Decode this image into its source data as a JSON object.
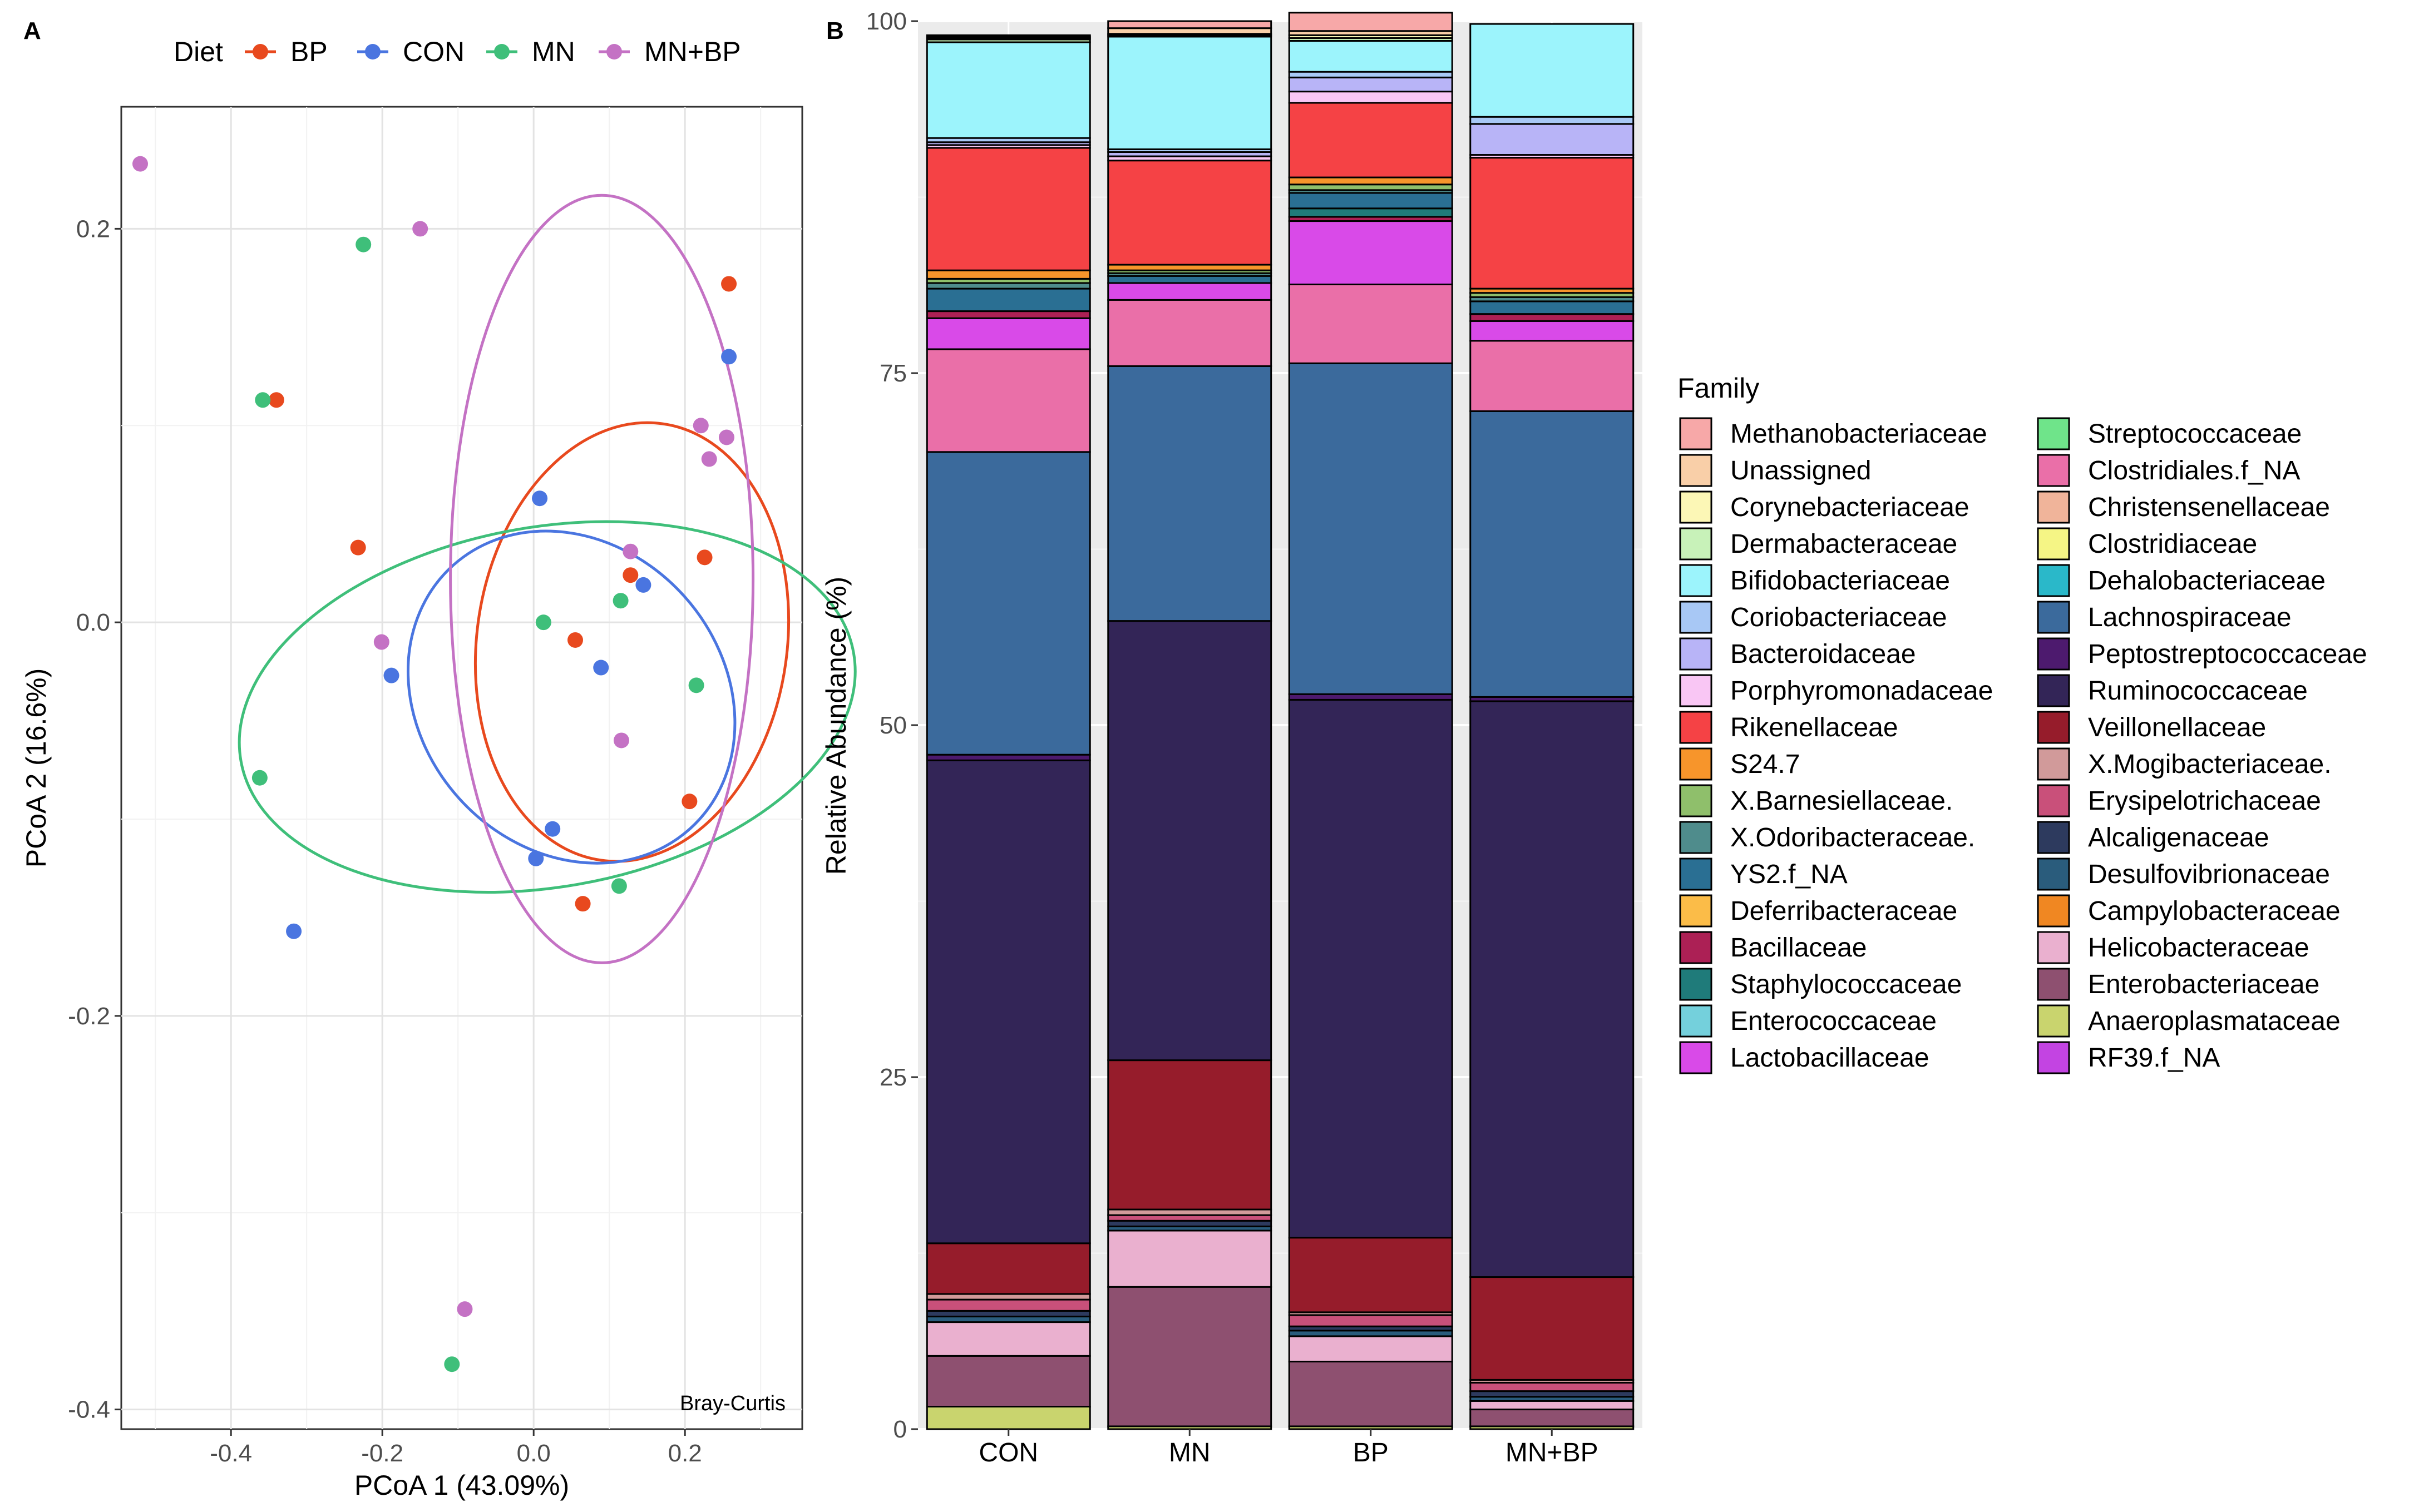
{
  "chart_data": [
    {
      "panel": "A",
      "type": "scatter",
      "xlabel": "PCoA 1 (43.09%)",
      "ylabel": "PCoA 2 (16.6%)",
      "xlim": [
        -0.545,
        0.355
      ],
      "ylim": [
        -0.41,
        0.262
      ],
      "xticks": [
        -0.4,
        -0.2,
        0.0,
        0.2
      ],
      "xtick_labels": [
        "-0.4",
        "-0.2",
        "0.0",
        "0.2"
      ],
      "yticks": [
        -0.4,
        -0.2,
        0.0,
        0.2
      ],
      "ytick_labels": [
        "-0.4",
        "-0.2",
        "0.0",
        "0.2"
      ],
      "annotation": "Bray-Curtis",
      "legend": {
        "title": "Diet",
        "position": "top"
      },
      "series": [
        {
          "name": "BP",
          "color": "#E8491E",
          "points": [
            [
              -0.34,
              0.113
            ],
            [
              -0.232,
              0.038
            ],
            [
              0.128,
              0.024
            ],
            [
              0.226,
              0.033
            ],
            [
              0.258,
              0.172
            ],
            [
              0.055,
              -0.009
            ],
            [
              0.206,
              -0.091
            ],
            [
              0.065,
              -0.143
            ]
          ],
          "ellipse": {
            "cx": 0.13,
            "cy": -0.01,
            "rx": 0.205,
            "ry": 0.112,
            "angle": -8
          }
        },
        {
          "name": "CON",
          "color": "#4A75E0",
          "points": [
            [
              0.008,
              0.063
            ],
            [
              0.145,
              0.019
            ],
            [
              0.089,
              -0.023
            ],
            [
              -0.188,
              -0.027
            ],
            [
              0.258,
              0.135
            ],
            [
              0.025,
              -0.105
            ],
            [
              0.003,
              -0.12
            ],
            [
              -0.317,
              -0.157
            ]
          ],
          "ellipse": {
            "cx": 0.05,
            "cy": -0.038,
            "rx": 0.2,
            "ry": 0.09,
            "angle": 42
          }
        },
        {
          "name": "MN",
          "color": "#3FBF7A",
          "points": [
            [
              -0.225,
              0.192
            ],
            [
              -0.358,
              0.113
            ],
            [
              0.013,
              0.0
            ],
            [
              0.115,
              0.011
            ],
            [
              0.215,
              -0.032
            ],
            [
              -0.362,
              -0.079
            ],
            [
              0.113,
              -0.134
            ],
            [
              -0.108,
              -0.377
            ]
          ],
          "ellipse": {
            "cx": 0.018,
            "cy": -0.043,
            "rx": 0.238,
            "ry": 0.158,
            "angle": -80
          }
        },
        {
          "name": "MN+BP",
          "color": "#C472C4",
          "points": [
            [
              -0.52,
              0.233
            ],
            [
              -0.15,
              0.2
            ],
            [
              0.221,
              0.1
            ],
            [
              0.232,
              0.083
            ],
            [
              0.255,
              0.094
            ],
            [
              0.128,
              0.036
            ],
            [
              -0.201,
              -0.01
            ],
            [
              0.116,
              -0.06
            ],
            [
              -0.091,
              -0.349
            ]
          ],
          "ellipse": {
            "cx": 0.09,
            "cy": 0.022,
            "rx": 0.2,
            "ry": 0.195,
            "angle": 0
          }
        }
      ]
    },
    {
      "panel": "B",
      "type": "bar",
      "stacked": true,
      "ylabel": "Relative Abundance (%)",
      "ylim": [
        0,
        100
      ],
      "yticks": [
        0,
        25,
        50,
        75,
        100
      ],
      "categories": [
        "CON",
        "MN",
        "BP",
        "MN+BP"
      ],
      "legend": {
        "title": "Family",
        "position": "right"
      },
      "families": [
        {
          "name": "Methanobacteriaceae",
          "color": "#F7A8A8"
        },
        {
          "name": "Unassigned",
          "color": "#F9CFA8"
        },
        {
          "name": "Corynebacteriaceae",
          "color": "#FCF7B6"
        },
        {
          "name": "Dermabacteraceae",
          "color": "#C8F2B9"
        },
        {
          "name": "Bifidobacteriaceae",
          "color": "#9CF4FC"
        },
        {
          "name": "Coriobacteriaceae",
          "color": "#A8C8F5"
        },
        {
          "name": "Bacteroidaceae",
          "color": "#B8B4F7"
        },
        {
          "name": "Porphyromonadaceae",
          "color": "#F9C6F4"
        },
        {
          "name": "Rikenellaceae",
          "color": "#F54245"
        },
        {
          "name": "S24.7",
          "color": "#F7952B"
        },
        {
          "name": "X.Barnesiellaceae.",
          "color": "#8FBF6B"
        },
        {
          "name": "X.Odoribacteraceae.",
          "color": "#4F8C8C"
        },
        {
          "name": "YS2.f_NA",
          "color": "#2A6F93"
        },
        {
          "name": "Deferribacteraceae",
          "color": "#FBBC48"
        },
        {
          "name": "Bacillaceae",
          "color": "#AC2055"
        },
        {
          "name": "Staphylococcaceae",
          "color": "#1F7B7A"
        },
        {
          "name": "Enterococcaceae",
          "color": "#74D0DC"
        },
        {
          "name": "Lactobacillaceae",
          "color": "#D94AE8"
        },
        {
          "name": "Streptococcaceae",
          "color": "#6FE48A"
        },
        {
          "name": "Clostridiales.f_NA",
          "color": "#EA6FA8"
        },
        {
          "name": "Christensenellaceae",
          "color": "#F0B49A"
        },
        {
          "name": "Clostridiaceae",
          "color": "#F5F585"
        },
        {
          "name": "Dehalobacteriaceae",
          "color": "#2AB8C9"
        },
        {
          "name": "Lachnospiraceae",
          "color": "#3B6A9C"
        },
        {
          "name": "Peptostreptococcaceae",
          "color": "#4D1A6E"
        },
        {
          "name": "Ruminococcaceae",
          "color": "#332557"
        },
        {
          "name": "Veillonellaceae",
          "color": "#961C2B"
        },
        {
          "name": "X.Mogibacteriaceae.",
          "color": "#D19A9A"
        },
        {
          "name": "Erysipelotrichaceae",
          "color": "#C9507A"
        },
        {
          "name": "Alcaligenaceae",
          "color": "#2D3A5E"
        },
        {
          "name": "Desulfovibrionaceae",
          "color": "#2A5C7C"
        },
        {
          "name": "Campylobacteraceae",
          "color": "#F08722"
        },
        {
          "name": "Helicobacteraceae",
          "color": "#EAB0CF"
        },
        {
          "name": "Enterobacteriaceae",
          "color": "#8E5070"
        },
        {
          "name": "Anaeroplasmataceae",
          "color": "#C9D46E"
        },
        {
          "name": "RF39.f_NA",
          "color": "#C344E2"
        }
      ],
      "stack_order": [
        "Anaeroplasmataceae",
        "Enterobacteriaceae",
        "Helicobacteraceae",
        "Desulfovibrionaceae",
        "Alcaligenaceae",
        "Erysipelotrichaceae",
        "X.Mogibacteriaceae.",
        "Veillonellaceae",
        "Ruminococcaceae",
        "Peptostreptococcaceae",
        "Lachnospiraceae",
        "Clostridiales.f_NA",
        "Lactobacillaceae",
        "RF39.f_NA",
        "Bacillaceae",
        "Staphylococcaceae",
        "YS2.f_NA",
        "X.Odoribacteraceae.",
        "X.Barnesiellaceae.",
        "S24.7",
        "Rikenellaceae",
        "Porphyromonadaceae",
        "Bacteroidaceae",
        "Coriobacteriaceae",
        "Bifidobacteriaceae",
        "Dermabacteraceae",
        "Corynebacteriaceae",
        "Unassigned",
        "Methanobacteriaceae"
      ],
      "series": [
        {
          "name": "CON",
          "values": {
            "Anaeroplasmataceae": 1.6,
            "Enterobacteriaceae": 3.6,
            "Helicobacteraceae": 2.4,
            "Desulfovibrionaceae": 0.4,
            "Alcaligenaceae": 0.4,
            "Erysipelotrichaceae": 0.8,
            "X.Mogibacteriaceae.": 0.4,
            "Veillonellaceae": 3.6,
            "Ruminococcaceae": 34.3,
            "Peptostreptococcaceae": 0.4,
            "Lachnospiraceae": 21.5,
            "Clostridiales.f_NA": 7.3,
            "Lactobacillaceae": 2.2,
            "RF39.f_NA": 0,
            "Bacillaceae": 0.5,
            "Staphylococcaceae": 0,
            "YS2.f_NA": 1.6,
            "X.Odoribacteraceae.": 0.4,
            "X.Barnesiellaceae.": 0.3,
            "S24.7": 0.6,
            "Rikenellaceae": 8.7,
            "Porphyromonadaceae": 0.2,
            "Bacteroidaceae": 0.2,
            "Coriobacteriaceae": 0.3,
            "Bifidobacteriaceae": 6.8,
            "Dermabacteraceae": 0.2,
            "Corynebacteriaceae": 0.1,
            "Unassigned": 0.1,
            "Methanobacteriaceae": 0.1
          }
        },
        {
          "name": "MN",
          "values": {
            "Anaeroplasmataceae": 0.2,
            "Enterobacteriaceae": 9.9,
            "Helicobacteraceae": 4.0,
            "Desulfovibrionaceae": 0.3,
            "Alcaligenaceae": 0.4,
            "Erysipelotrichaceae": 0.4,
            "X.Mogibacteriaceae.": 0.4,
            "Veillonellaceae": 10.6,
            "Ruminococcaceae": 31.2,
            "Peptostreptococcaceae": 0,
            "Lachnospiraceae": 18.1,
            "Clostridiales.f_NA": 4.7,
            "Lactobacillaceae": 1.2,
            "RF39.f_NA": 0,
            "Bacillaceae": 0,
            "Staphylococcaceae": 0,
            "YS2.f_NA": 0.5,
            "X.Odoribacteraceae.": 0.2,
            "X.Barnesiellaceae.": 0.2,
            "S24.7": 0.4,
            "Rikenellaceae": 7.4,
            "Porphyromonadaceae": 0.3,
            "Bacteroidaceae": 0.3,
            "Coriobacteriaceae": 0.2,
            "Bifidobacteriaceae": 8.0,
            "Dermabacteraceae": 0.1,
            "Corynebacteriaceae": 0.1,
            "Unassigned": 0.4,
            "Methanobacteriaceae": 0.5
          }
        },
        {
          "name": "BP",
          "values": {
            "Anaeroplasmataceae": 0.2,
            "Enterobacteriaceae": 4.6,
            "Helicobacteraceae": 1.8,
            "Desulfovibrionaceae": 0.4,
            "Alcaligenaceae": 0.3,
            "Erysipelotrichaceae": 0.8,
            "X.Mogibacteriaceae.": 0.2,
            "Veillonellaceae": 5.3,
            "Ruminococcaceae": 38.2,
            "Peptostreptococcaceae": 0.4,
            "Lachnospiraceae": 23.5,
            "Clostridiales.f_NA": 5.6,
            "Lactobacillaceae": 4.5,
            "RF39.f_NA": 0,
            "Bacillaceae": 0.3,
            "Staphylococcaceae": 0.6,
            "YS2.f_NA": 1.1,
            "X.Odoribacteraceae.": 0.2,
            "X.Barnesiellaceae.": 0.4,
            "S24.7": 0.5,
            "Rikenellaceae": 5.3,
            "Porphyromonadaceae": 0.8,
            "Bacteroidaceae": 1.0,
            "Coriobacteriaceae": 0.4,
            "Bifidobacteriaceae": 2.2,
            "Dermabacteraceae": 0.2,
            "Corynebacteriaceae": 0.2,
            "Unassigned": 0.3,
            "Methanobacteriaceae": 1.3
          }
        },
        {
          "name": "MN+BP",
          "values": {
            "Anaeroplasmataceae": 0.2,
            "Enterobacteriaceae": 1.2,
            "Helicobacteraceae": 0.6,
            "Desulfovibrionaceae": 0.3,
            "Alcaligenaceae": 0.4,
            "Erysipelotrichaceae": 0.6,
            "X.Mogibacteriaceae.": 0.2,
            "Veillonellaceae": 7.3,
            "Ruminococcaceae": 40.9,
            "Peptostreptococcaceae": 0.3,
            "Lachnospiraceae": 20.3,
            "Clostridiales.f_NA": 5.0,
            "Lactobacillaceae": 1.4,
            "RF39.f_NA": 0,
            "Bacillaceae": 0.5,
            "Staphylococcaceae": 0,
            "YS2.f_NA": 0.9,
            "X.Odoribacteraceae.": 0.3,
            "X.Barnesiellaceae.": 0.3,
            "S24.7": 0.3,
            "Rikenellaceae": 9.3,
            "Porphyromonadaceae": 0.2,
            "Bacteroidaceae": 2.2,
            "Coriobacteriaceae": 0.5,
            "Bifidobacteriaceae": 6.6,
            "Dermabacteraceae": 0,
            "Corynebacteriaceae": 0,
            "Unassigned": 0,
            "Methanobacteriaceae": 0
          }
        }
      ]
    }
  ],
  "labels": {
    "panel_a": "A",
    "panel_b": "B"
  }
}
